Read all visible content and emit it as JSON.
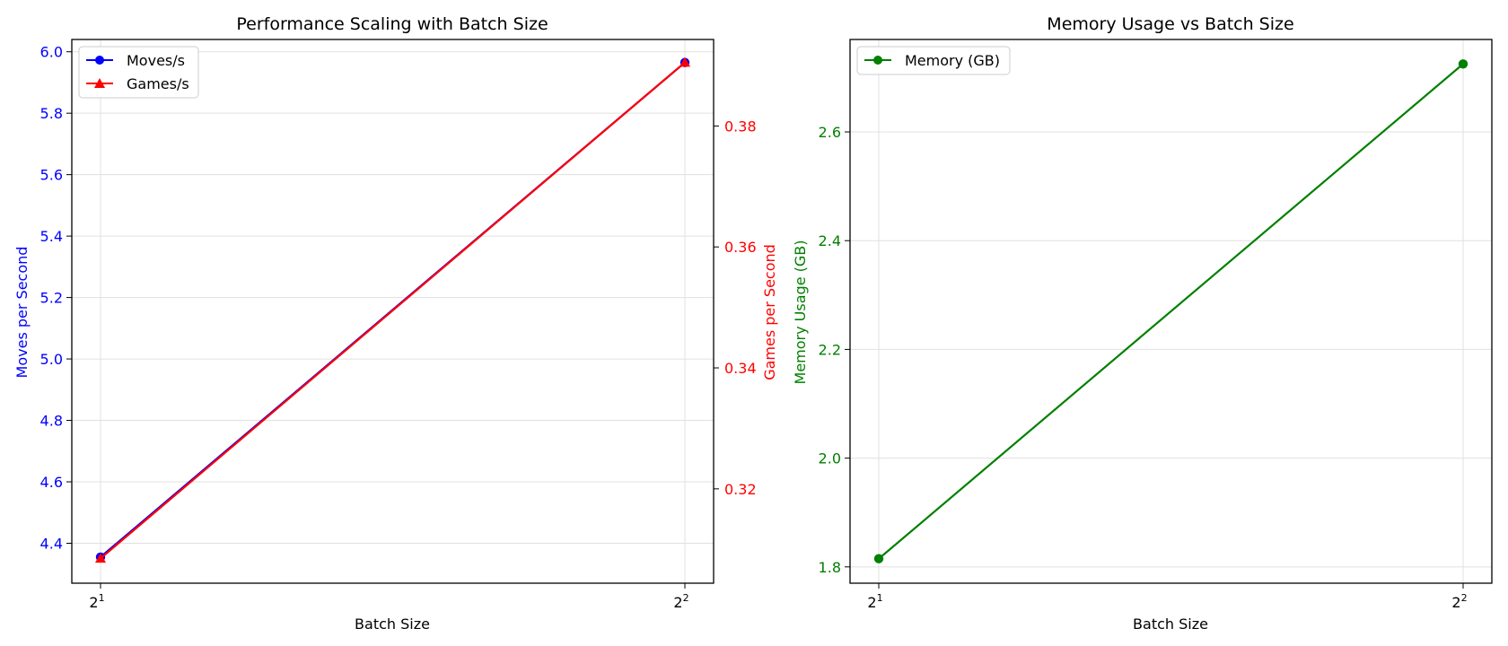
{
  "figure": {
    "background": "#ffffff"
  },
  "chart_data": [
    {
      "type": "line",
      "title": "Performance Scaling with Batch Size",
      "xlabel": "Batch Size",
      "x_scale": "log2",
      "x": [
        2,
        4
      ],
      "x_ticks": [
        {
          "base": "2",
          "exp": "1"
        },
        {
          "base": "2",
          "exp": "2"
        }
      ],
      "grid": true,
      "legend_position": "top-left",
      "axes": {
        "left": {
          "label": "Moves per Second",
          "color": "#0000ff",
          "ylim": [
            4.27,
            6.04
          ],
          "ticks": [
            "4.4",
            "4.6",
            "4.8",
            "5.0",
            "5.2",
            "5.4",
            "5.6",
            "5.8",
            "6.0"
          ]
        },
        "right": {
          "label": "Games per Second",
          "color": "#ff0000",
          "ylim": [
            0.3044,
            0.3943
          ],
          "ticks": [
            "0.32",
            "0.34",
            "0.36",
            "0.38"
          ]
        }
      },
      "series": [
        {
          "name": "Moves/s",
          "axis": "left",
          "values": [
            4.355,
            5.965
          ],
          "color": "#0000ff",
          "marker": "circle"
        },
        {
          "name": "Games/s",
          "axis": "right",
          "values": [
            0.3085,
            0.3905
          ],
          "color": "#ff0000",
          "marker": "triangle"
        }
      ]
    },
    {
      "type": "line",
      "title": "Memory Usage vs Batch Size",
      "xlabel": "Batch Size",
      "x_scale": "log2",
      "x": [
        2,
        4
      ],
      "x_ticks": [
        {
          "base": "2",
          "exp": "1"
        },
        {
          "base": "2",
          "exp": "2"
        }
      ],
      "grid": true,
      "legend_position": "top-left",
      "axes": {
        "left": {
          "label": "Memory Usage (GB)",
          "color": "#008000",
          "ylim": [
            1.77,
            2.77
          ],
          "ticks": [
            "1.8",
            "2.0",
            "2.2",
            "2.4",
            "2.6"
          ]
        }
      },
      "series": [
        {
          "name": "Memory (GB)",
          "axis": "left",
          "values": [
            1.815,
            2.725
          ],
          "color": "#008000",
          "marker": "circle"
        }
      ]
    }
  ]
}
